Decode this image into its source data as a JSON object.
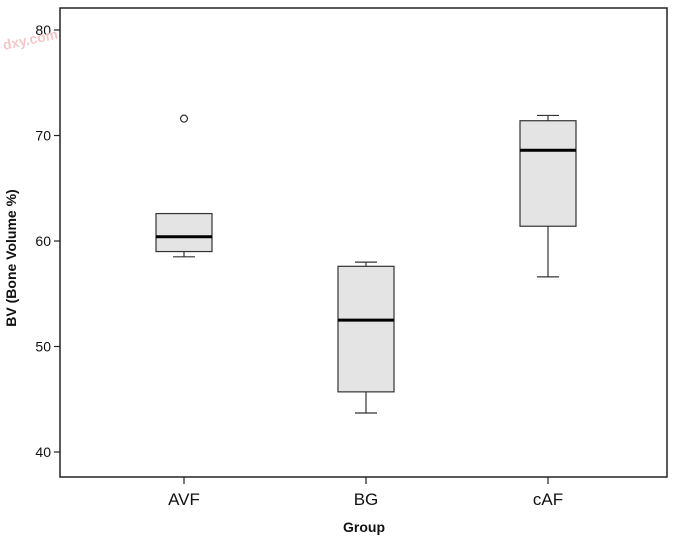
{
  "chart_data": {
    "type": "box",
    "title": "",
    "xlabel": "Group",
    "ylabel": "BV (Bone Volume %)",
    "ylim": [
      40,
      80
    ],
    "yticks": [
      40,
      50,
      60,
      70,
      80
    ],
    "grid": false,
    "legend": "none",
    "box_fill": "#e4e4e4",
    "watermark": "dxy.com",
    "categories": [
      "AVF",
      "BG",
      "cAF"
    ],
    "boxes": [
      {
        "category": "AVF",
        "min": 58.5,
        "q1": 59.0,
        "median": 60.4,
        "q3": 62.6,
        "max": 62.6,
        "outliers": [
          71.6
        ]
      },
      {
        "category": "BG",
        "min": 43.7,
        "q1": 45.7,
        "median": 52.5,
        "q3": 57.6,
        "max": 58.0,
        "outliers": []
      },
      {
        "category": "cAF",
        "min": 56.6,
        "q1": 61.4,
        "median": 68.6,
        "q3": 71.4,
        "max": 71.9,
        "outliers": []
      }
    ]
  }
}
